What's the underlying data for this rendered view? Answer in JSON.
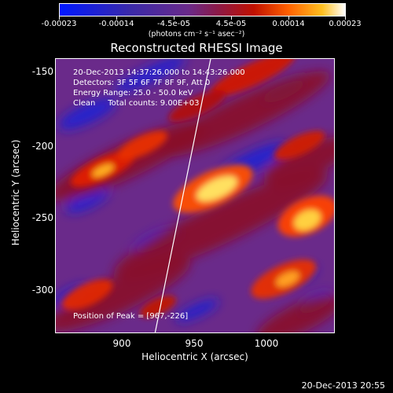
{
  "colorbar": {
    "ticks": [
      "-0.00023",
      "-0.00014",
      "-4.5e-05",
      "4.5e-05",
      "0.00014",
      "0.00023"
    ],
    "units": "(photons cm⁻² s⁻¹ asec⁻²)"
  },
  "title": "Reconstructed RHESSI Image",
  "info": {
    "line1": "20-Dec-2013 14:37:26.000 to 14:43:26.000",
    "line2": "Detectors: 3F 5F 6F 7F 8F 9F, Att 0",
    "line3": "Energy Range: 25.0 - 50.0 keV",
    "line4": "Clean     Total counts: 9.00E+03",
    "peak": "Position of Peak = [967,-226]"
  },
  "axes": {
    "xlabel": "Heliocentric X (arcsec)",
    "ylabel": "Heliocentric Y (arcsec)",
    "xticks": [
      "900",
      "950",
      "1000"
    ],
    "yticks": [
      "-150",
      "-200",
      "-250",
      "-300"
    ]
  },
  "timestamp": "20-Dec-2013 20:55",
  "colors": {
    "cmap": [
      "#0018ff",
      "#3b2aa8",
      "#7a2a8a",
      "#6b1a50",
      "#b01010",
      "#e03000",
      "#ff8000",
      "#ffd840",
      "#ffffff"
    ]
  }
}
